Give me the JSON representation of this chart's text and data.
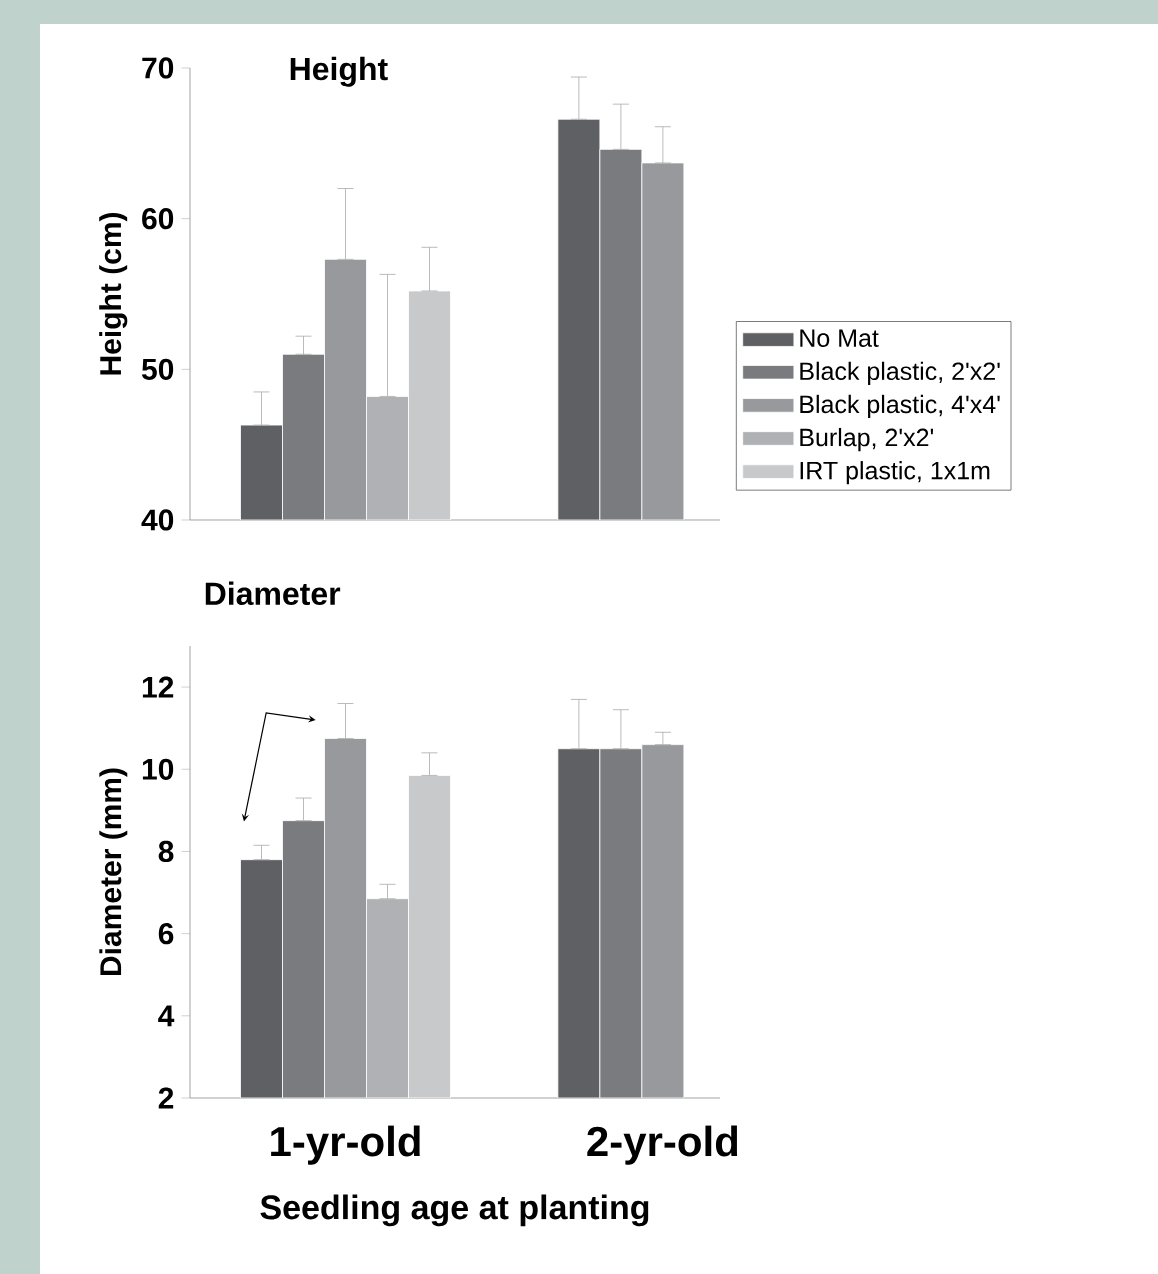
{
  "chart_data": [
    {
      "type": "bar",
      "title": "Height",
      "ylabel": "Height (cm)",
      "categories": [
        null,
        null
      ],
      "ylim": [
        40,
        70
      ],
      "yticks": [
        40,
        50,
        60,
        70
      ],
      "legend": "right",
      "series": [
        {
          "name": "No Mat",
          "color": "#5f6064",
          "values": [
            46.3,
            66.6
          ],
          "errors": [
            [
              46.3,
              48.5
            ],
            [
              66.6,
              69.4
            ]
          ]
        },
        {
          "name": "Black plastic, 2'x2'",
          "color": "#7a7b7f",
          "values": [
            51.0,
            64.6
          ],
          "errors": [
            [
              51.0,
              52.2
            ],
            [
              64.6,
              67.6
            ]
          ]
        },
        {
          "name": "Black plastic, 4'x4'",
          "color": "#98999d",
          "values": [
            57.3,
            63.7
          ],
          "errors": [
            [
              57.3,
              62.0
            ],
            [
              63.7,
              66.1
            ]
          ]
        },
        {
          "name": "Burlap, 2'x2'",
          "color": "#b0b1b4",
          "values": [
            48.2,
            null
          ],
          "errors": [
            [
              48.2,
              56.3
            ],
            null
          ]
        },
        {
          "name": "IRT plastic, 1x1m",
          "color": "#c8c9cb",
          "values": [
            55.2,
            null
          ],
          "errors": [
            [
              55.2,
              58.1
            ],
            null
          ]
        }
      ]
    },
    {
      "type": "bar",
      "title": "Diameter",
      "ylabel": "Diameter (mm)",
      "xlabel": "Seedling age at planting",
      "categories": [
        "1-yr-old",
        "2-yr-old"
      ],
      "ylim": [
        2,
        13
      ],
      "yticks": [
        2,
        4,
        6,
        8,
        10,
        12
      ],
      "series": [
        {
          "color": "#5f6064",
          "values": [
            7.8,
            10.5
          ],
          "errors": [
            [
              7.8,
              8.15
            ],
            [
              10.5,
              11.7
            ]
          ]
        },
        {
          "color": "#7a7b7f",
          "values": [
            8.75,
            10.5
          ],
          "errors": [
            [
              8.75,
              9.3
            ],
            [
              10.5,
              11.45
            ]
          ]
        },
        {
          "color": "#98999d",
          "values": [
            10.75,
            10.6
          ],
          "errors": [
            [
              10.75,
              11.6
            ],
            [
              10.6,
              10.9
            ]
          ]
        },
        {
          "color": "#b0b1b4",
          "values": [
            6.85,
            null
          ],
          "errors": [
            [
              6.85,
              7.2
            ],
            null
          ]
        },
        {
          "color": "#c8c9cb",
          "values": [
            9.85,
            null
          ],
          "errors": [
            [
              9.85,
              10.4
            ],
            null
          ]
        }
      ]
    }
  ]
}
